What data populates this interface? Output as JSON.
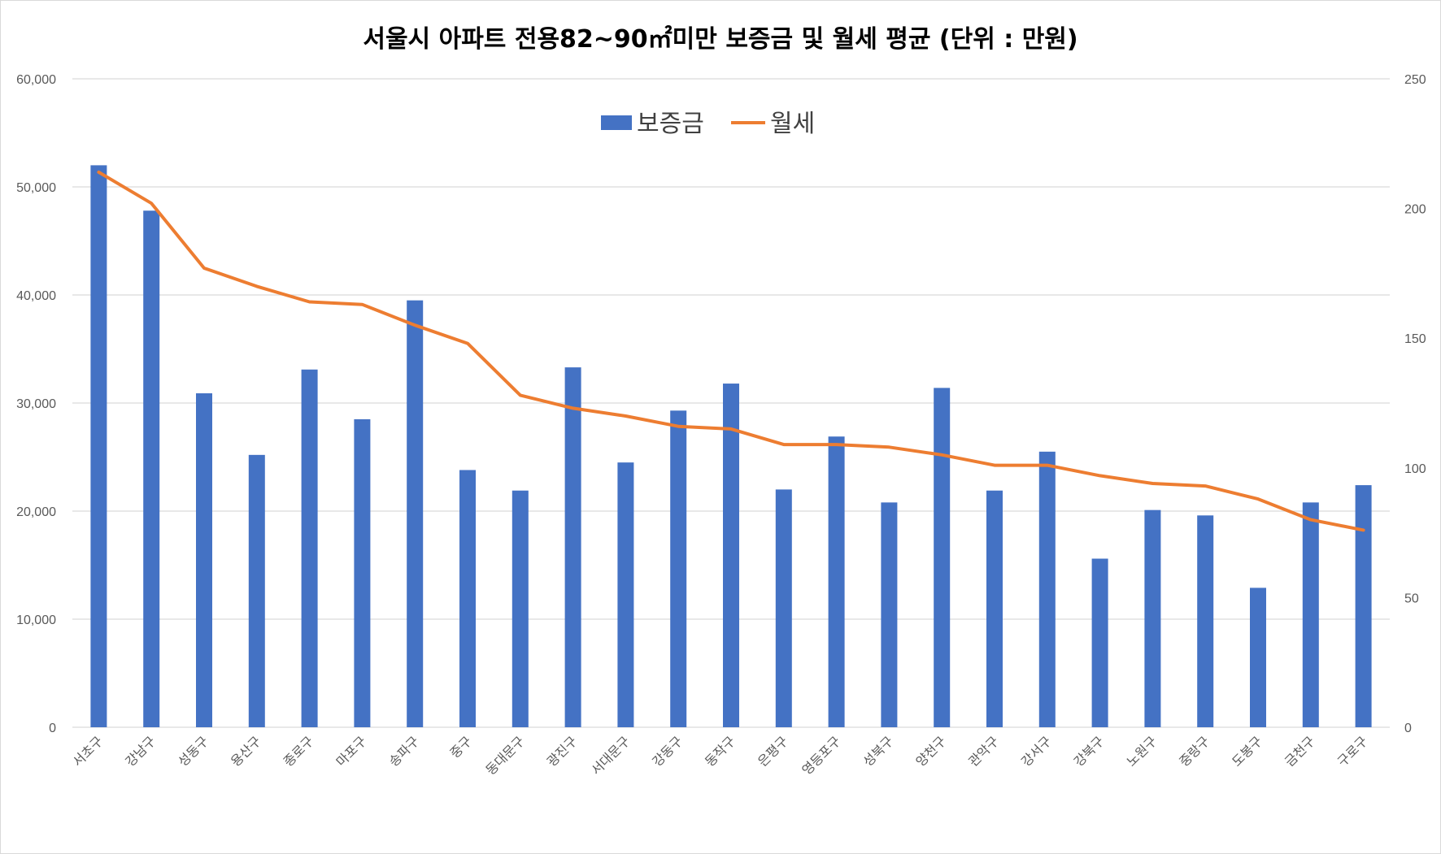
{
  "chart_data": {
    "type": "bar",
    "title": "서울시 아파트 전용82~90㎡미만 보증금 및 월세 평균 (단위 : 만원)",
    "categories": [
      "서초구",
      "강남구",
      "성동구",
      "용산구",
      "종로구",
      "마포구",
      "송파구",
      "중구",
      "동대문구",
      "광진구",
      "서대문구",
      "강동구",
      "동작구",
      "은평구",
      "영등포구",
      "성북구",
      "양천구",
      "관악구",
      "강서구",
      "강북구",
      "노원구",
      "중랑구",
      "도봉구",
      "금천구",
      "구로구"
    ],
    "series": [
      {
        "name": "보증금",
        "type": "bar",
        "axis": "left",
        "color": "#4472C4",
        "values": [
          52000,
          47800,
          30900,
          25200,
          33100,
          28500,
          39500,
          23800,
          21900,
          33300,
          24500,
          29300,
          31800,
          22000,
          26900,
          20800,
          31400,
          21900,
          25500,
          15600,
          20100,
          19600,
          12900,
          20800,
          22400
        ]
      },
      {
        "name": "월세",
        "type": "line",
        "axis": "right",
        "color": "#ED7D31",
        "values": [
          214,
          202,
          177,
          170,
          164,
          163,
          155,
          148,
          128,
          123,
          120,
          116,
          115,
          109,
          109,
          108,
          105,
          101,
          101,
          97,
          94,
          93,
          88,
          80,
          76
        ]
      }
    ],
    "y_left": {
      "min": 0,
      "max": 60000,
      "ticks": [
        "0",
        "10,000",
        "20,000",
        "30,000",
        "40,000",
        "50,000",
        "60,000"
      ]
    },
    "y_right": {
      "min": 0,
      "max": 250,
      "ticks": [
        "0",
        "50",
        "100",
        "150",
        "200",
        "250"
      ]
    },
    "grid": true,
    "legend": "top-center"
  }
}
